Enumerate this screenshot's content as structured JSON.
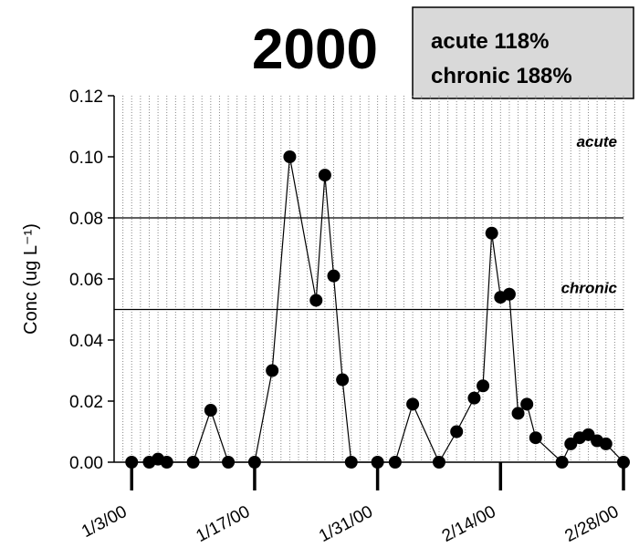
{
  "chart_data": {
    "type": "line",
    "title": "2000",
    "ylabel": "Conc (ug L⁻¹)",
    "annotations": [
      "acute 118%",
      "chronic 188%"
    ],
    "reference_lines": [
      {
        "label": "acute",
        "value": 0.08
      },
      {
        "label": "chronic",
        "value": 0.05
      }
    ],
    "x": [
      "2000-01-03",
      "2000-01-05",
      "2000-01-06",
      "2000-01-07",
      "2000-01-10",
      "2000-01-12",
      "2000-01-14",
      "2000-01-17",
      "2000-01-19",
      "2000-01-21",
      "2000-01-24",
      "2000-01-25",
      "2000-01-26",
      "2000-01-27",
      "2000-01-28",
      "2000-01-31",
      "2000-02-02",
      "2000-02-04",
      "2000-02-07",
      "2000-02-09",
      "2000-02-11",
      "2000-02-12",
      "2000-02-13",
      "2000-02-14",
      "2000-02-15",
      "2000-02-16",
      "2000-02-17",
      "2000-02-18",
      "2000-02-21",
      "2000-02-22",
      "2000-02-23",
      "2000-02-24",
      "2000-02-25",
      "2000-02-26",
      "2000-02-28"
    ],
    "series": [
      {
        "color": "#000000",
        "values": [
          0,
          0,
          0.001,
          0,
          0,
          0.017,
          0,
          0,
          0.03,
          0.1,
          0.053,
          0.094,
          0.061,
          0.027,
          0,
          0,
          0,
          0.019,
          0,
          0.01,
          0.021,
          0.025,
          0.075,
          0.054,
          0.055,
          0.016,
          0.019,
          0.008,
          0,
          0.006,
          0.008,
          0.009,
          0.007,
          0.006,
          0
        ]
      }
    ],
    "xlim": [
      "2000-01-01",
      "2000-02-28"
    ],
    "xticks": [
      {
        "value": "2000-01-03",
        "label": "1/3/00"
      },
      {
        "value": "2000-01-17",
        "label": "1/17/00"
      },
      {
        "value": "2000-01-31",
        "label": "1/31/00"
      },
      {
        "value": "2000-02-14",
        "label": "2/14/00"
      },
      {
        "value": "2000-02-28",
        "label": "2/28/00"
      }
    ],
    "ylim": [
      0,
      0.12
    ],
    "yticks": [
      {
        "value": 0,
        "label": "0.00"
      },
      {
        "value": 0.02,
        "label": "0.02"
      },
      {
        "value": 0.04,
        "label": "0.04"
      },
      {
        "value": 0.06,
        "label": "0.06"
      },
      {
        "value": 0.08,
        "label": "0.08"
      },
      {
        "value": 0.1,
        "label": "0.10"
      },
      {
        "value": 0.12,
        "label": "0.12"
      }
    ],
    "grid": "x-daily-dotted"
  }
}
